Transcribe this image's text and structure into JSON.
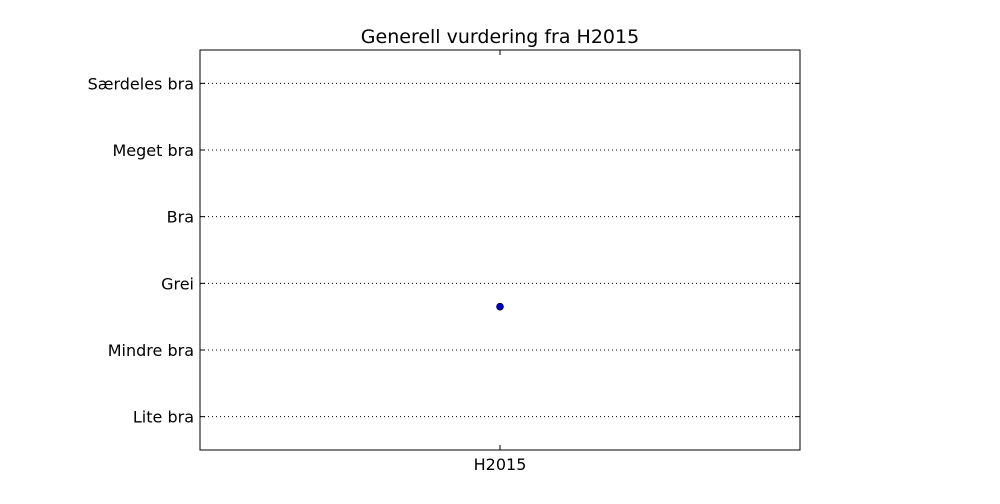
{
  "chart_data": {
    "type": "scatter",
    "title": "Generell vurdering fra H2015",
    "xlabel": "",
    "ylabel": "",
    "categories": [
      "H2015"
    ],
    "y_categories": [
      "Lite bra",
      "Mindre bra",
      "Grei",
      "Bra",
      "Meget bra",
      "Særdeles bra"
    ],
    "ylim": [
      0.5,
      6.5
    ],
    "grid": "horizontal-dotted",
    "series": [
      {
        "values": [
          2.65
        ],
        "color": "#0000cc"
      }
    ]
  }
}
